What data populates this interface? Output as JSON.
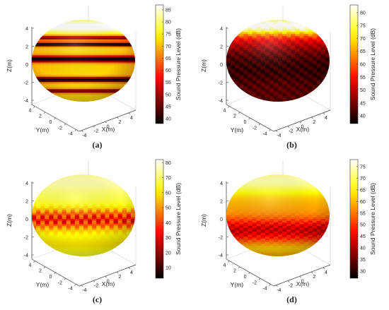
{
  "colorbar_label": "Sound Pressure Level (dB)",
  "axis_labels": {
    "x": "X(m)",
    "y": "Y(m)",
    "z": "Z(m)"
  },
  "axis_ticks": {
    "z": [
      "-4",
      "-2",
      "0",
      "2",
      "4"
    ],
    "y": [
      "4",
      "2",
      "0",
      "-2",
      "-4"
    ],
    "x": [
      "-4",
      "-2",
      "0",
      "2",
      "4"
    ]
  },
  "colormap": "hot",
  "chart_data": [
    {
      "type": "surface",
      "caption": "(a)",
      "xlim": [
        -4,
        4
      ],
      "ylim": [
        -4,
        4
      ],
      "zlim": [
        -4,
        4
      ],
      "colorbar": {
        "min": 38,
        "max": 87,
        "ticks": [
          40,
          45,
          50,
          55,
          60,
          65,
          70,
          75,
          80,
          85
        ]
      },
      "pattern": "banded",
      "bands": [
        {
          "pos": 0.22,
          "s": 0.55,
          "w": 0.014
        },
        {
          "pos": 0.3,
          "s": 0.85,
          "w": 0.012
        },
        {
          "pos": 0.48,
          "s": 1.0,
          "w": 0.02
        },
        {
          "pos": 0.73,
          "s": 0.95,
          "w": 0.015
        },
        {
          "pos": 0.87,
          "s": 0.6,
          "w": 0.012
        }
      ]
    },
    {
      "type": "surface",
      "caption": "(b)",
      "xlim": [
        -4,
        4
      ],
      "ylim": [
        -4,
        4
      ],
      "zlim": [
        -4,
        4
      ],
      "colorbar": {
        "min": 37,
        "max": 83,
        "ticks": [
          40,
          45,
          50,
          55,
          60,
          65,
          70,
          75,
          80
        ]
      },
      "pattern": "top-hot dark body"
    },
    {
      "type": "surface",
      "caption": "(c)",
      "xlim": [
        -4,
        4
      ],
      "ylim": [
        -4,
        4
      ],
      "zlim": [
        -4,
        4
      ],
      "colorbar": {
        "min": 3,
        "max": 82,
        "ticks": [
          10,
          20,
          30,
          40,
          50,
          60,
          70,
          80
        ]
      },
      "pattern": "bright with dark equatorial belt"
    },
    {
      "type": "surface",
      "caption": "(d)",
      "xlim": [
        -4,
        4
      ],
      "ylim": [
        -4,
        4
      ],
      "zlim": [
        -4,
        4
      ],
      "colorbar": {
        "min": 27,
        "max": 78,
        "ticks": [
          30,
          35,
          40,
          45,
          50,
          55,
          60,
          65,
          70,
          75
        ]
      },
      "pattern": "bright top, darker lower belt"
    }
  ]
}
